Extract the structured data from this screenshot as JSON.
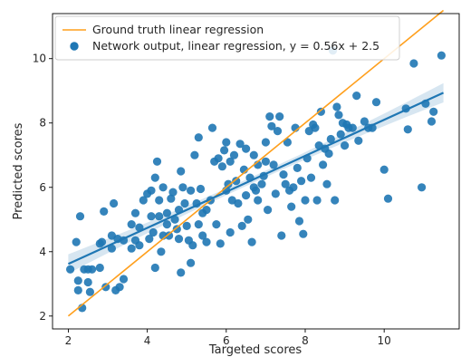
{
  "chart_data": {
    "type": "scatter",
    "title": "",
    "xlabel": "Targeted scores",
    "ylabel": "Predicted scores",
    "xlim": [
      1.6,
      11.9
    ],
    "ylim": [
      1.6,
      11.4
    ],
    "xticks": [
      2,
      4,
      6,
      8,
      10
    ],
    "yticks": [
      2,
      4,
      6,
      8,
      10
    ],
    "grid": false,
    "legend_position": "top-left",
    "series": [
      {
        "name": "Ground truth linear regression",
        "kind": "line",
        "color": "#ff9f1c",
        "x": [
          2.0,
          11.5
        ],
        "y": [
          2.0,
          11.5
        ]
      },
      {
        "name": "Network output, linear regression, y = 0.56x + 2.5",
        "kind": "scatter+fit",
        "color": "#1f77b4",
        "fit": {
          "slope": 0.56,
          "intercept": 2.5,
          "x_range": [
            2.0,
            11.5
          ],
          "ci_halfwidth_edges": 0.3,
          "ci_halfwidth_center": 0.1
        },
        "points": [
          [
            2.05,
            3.45
          ],
          [
            2.25,
            3.1
          ],
          [
            2.2,
            4.3
          ],
          [
            2.3,
            5.1
          ],
          [
            2.25,
            2.8
          ],
          [
            2.35,
            2.25
          ],
          [
            2.4,
            3.45
          ],
          [
            2.5,
            3.45
          ],
          [
            2.5,
            3.05
          ],
          [
            2.55,
            2.75
          ],
          [
            2.6,
            3.45
          ],
          [
            2.8,
            3.5
          ],
          [
            2.8,
            4.25
          ],
          [
            2.85,
            4.3
          ],
          [
            2.95,
            2.9
          ],
          [
            2.9,
            5.25
          ],
          [
            3.1,
            4.5
          ],
          [
            3.1,
            4.1
          ],
          [
            3.15,
            5.5
          ],
          [
            3.2,
            2.8
          ],
          [
            3.25,
            4.4
          ],
          [
            3.3,
            2.9
          ],
          [
            3.4,
            4.35
          ],
          [
            3.4,
            3.15
          ],
          [
            3.6,
            4.1
          ],
          [
            3.6,
            4.85
          ],
          [
            3.7,
            4.35
          ],
          [
            3.7,
            5.2
          ],
          [
            3.8,
            4.75
          ],
          [
            3.8,
            4.2
          ],
          [
            3.9,
            5.6
          ],
          [
            4.0,
            5.8
          ],
          [
            4.05,
            4.4
          ],
          [
            4.1,
            5.9
          ],
          [
            4.1,
            5.1
          ],
          [
            4.15,
            4.6
          ],
          [
            4.2,
            3.5
          ],
          [
            4.2,
            6.3
          ],
          [
            4.25,
            6.8
          ],
          [
            4.3,
            5.1
          ],
          [
            4.35,
            4.0
          ],
          [
            4.3,
            5.6
          ],
          [
            4.4,
            4.5
          ],
          [
            4.4,
            6.0
          ],
          [
            4.5,
            5.2
          ],
          [
            4.5,
            4.85
          ],
          [
            4.55,
            4.5
          ],
          [
            4.6,
            5.65
          ],
          [
            4.65,
            5.85
          ],
          [
            4.7,
            5.0
          ],
          [
            4.75,
            4.7
          ],
          [
            4.8,
            4.4
          ],
          [
            4.8,
            5.3
          ],
          [
            4.85,
            6.5
          ],
          [
            4.85,
            3.35
          ],
          [
            4.9,
            6.0
          ],
          [
            4.95,
            5.5
          ],
          [
            5.0,
            4.8
          ],
          [
            5.05,
            4.35
          ],
          [
            5.1,
            5.9
          ],
          [
            5.1,
            3.65
          ],
          [
            5.2,
            7.0
          ],
          [
            5.15,
            4.2
          ],
          [
            5.25,
            5.5
          ],
          [
            5.3,
            7.55
          ],
          [
            5.3,
            4.85
          ],
          [
            5.35,
            5.95
          ],
          [
            5.4,
            5.2
          ],
          [
            5.4,
            4.5
          ],
          [
            5.5,
            5.3
          ],
          [
            5.5,
            4.3
          ],
          [
            5.6,
            5.6
          ],
          [
            5.65,
            7.85
          ],
          [
            5.7,
            6.8
          ],
          [
            5.75,
            4.85
          ],
          [
            5.8,
            6.9
          ],
          [
            5.85,
            4.25
          ],
          [
            5.9,
            6.65
          ],
          [
            5.95,
            7.15
          ],
          [
            6.0,
            5.9
          ],
          [
            6.0,
            7.4
          ],
          [
            6.05,
            6.1
          ],
          [
            6.1,
            4.6
          ],
          [
            6.1,
            6.8
          ],
          [
            6.15,
            5.6
          ],
          [
            6.2,
            7.0
          ],
          [
            6.25,
            6.2
          ],
          [
            6.3,
            5.5
          ],
          [
            6.35,
            7.35
          ],
          [
            6.4,
            4.8
          ],
          [
            6.45,
            6.55
          ],
          [
            6.5,
            5.75
          ],
          [
            6.5,
            7.2
          ],
          [
            6.55,
            5.0
          ],
          [
            6.6,
            6.3
          ],
          [
            6.65,
            4.3
          ],
          [
            6.7,
            6.0
          ],
          [
            6.7,
            7.0
          ],
          [
            6.75,
            5.9
          ],
          [
            6.8,
            6.7
          ],
          [
            6.8,
            5.6
          ],
          [
            6.9,
            6.1
          ],
          [
            6.95,
            6.35
          ],
          [
            7.0,
            6.8
          ],
          [
            7.0,
            7.4
          ],
          [
            7.05,
            5.3
          ],
          [
            7.1,
            8.2
          ],
          [
            7.15,
            7.9
          ],
          [
            7.2,
            6.7
          ],
          [
            7.25,
            5.8
          ],
          [
            7.3,
            7.75
          ],
          [
            7.35,
            8.2
          ],
          [
            7.4,
            4.5
          ],
          [
            7.45,
            6.4
          ],
          [
            7.5,
            6.1
          ],
          [
            7.55,
            7.4
          ],
          [
            7.6,
            5.9
          ],
          [
            7.65,
            5.4
          ],
          [
            7.7,
            6.0
          ],
          [
            7.75,
            7.85
          ],
          [
            7.8,
            6.6
          ],
          [
            7.85,
            4.95
          ],
          [
            7.9,
            6.2
          ],
          [
            7.95,
            4.55
          ],
          [
            8.0,
            5.6
          ],
          [
            8.05,
            6.9
          ],
          [
            8.1,
            7.75
          ],
          [
            8.15,
            6.3
          ],
          [
            8.2,
            7.95
          ],
          [
            8.25,
            7.85
          ],
          [
            8.3,
            5.6
          ],
          [
            8.35,
            7.3
          ],
          [
            8.4,
            8.35
          ],
          [
            8.45,
            6.7
          ],
          [
            8.5,
            7.2
          ],
          [
            8.55,
            6.1
          ],
          [
            8.6,
            7.05
          ],
          [
            8.65,
            7.5
          ],
          [
            8.7,
            10.25
          ],
          [
            8.75,
            5.6
          ],
          [
            8.8,
            8.5
          ],
          [
            8.85,
            8.25
          ],
          [
            8.9,
            7.65
          ],
          [
            8.95,
            8.0
          ],
          [
            9.0,
            7.3
          ],
          [
            9.05,
            7.95
          ],
          [
            9.1,
            7.85
          ],
          [
            9.2,
            7.85
          ],
          [
            9.3,
            8.85
          ],
          [
            9.35,
            7.45
          ],
          [
            9.5,
            8.05
          ],
          [
            9.6,
            7.85
          ],
          [
            9.7,
            7.85
          ],
          [
            9.8,
            8.65
          ],
          [
            10.0,
            6.55
          ],
          [
            10.1,
            5.65
          ],
          [
            10.55,
            8.45
          ],
          [
            10.6,
            7.8
          ],
          [
            10.75,
            9.85
          ],
          [
            10.95,
            6.0
          ],
          [
            11.05,
            8.6
          ],
          [
            11.2,
            8.05
          ],
          [
            11.25,
            8.35
          ],
          [
            11.45,
            10.1
          ]
        ]
      }
    ]
  }
}
